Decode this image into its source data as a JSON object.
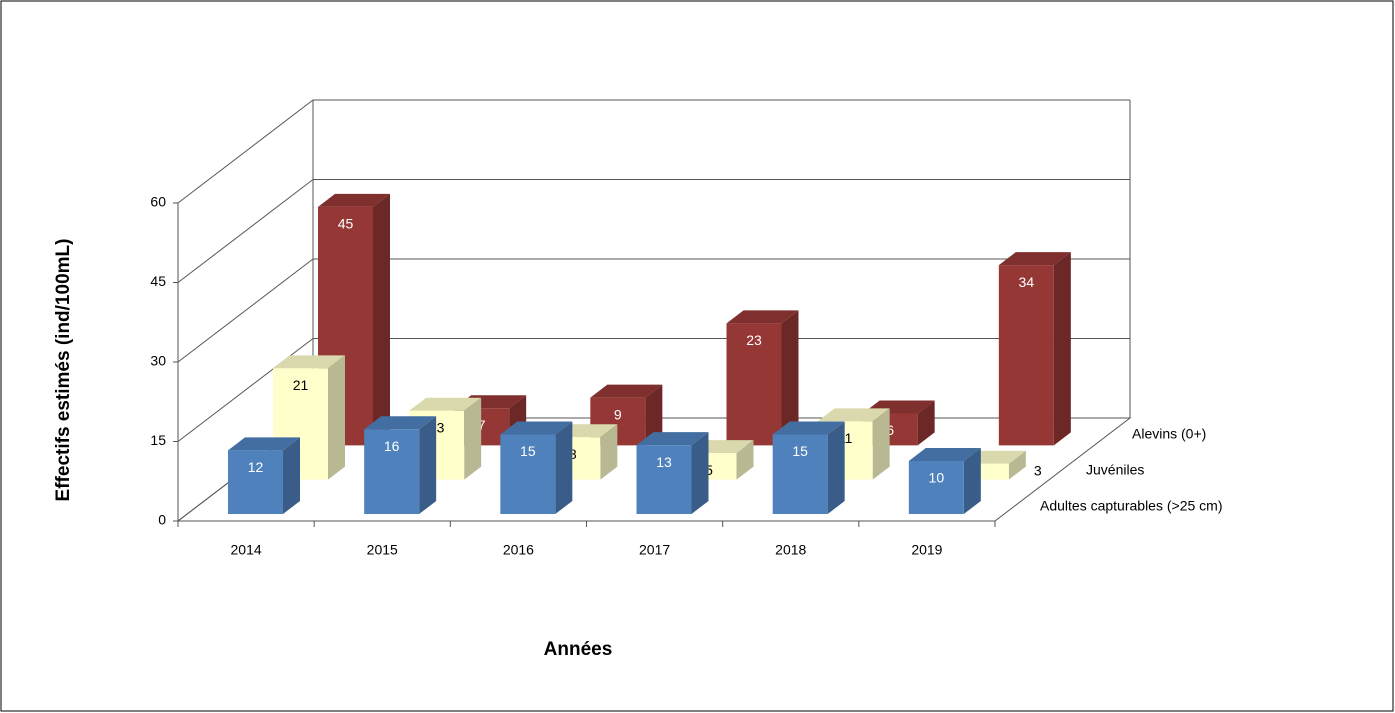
{
  "chart_data": {
    "type": "bar3d",
    "ylabel": "Effectifs estimés (ind/100mL)",
    "xlabel": "Années",
    "categories": [
      "2014",
      "2015",
      "2016",
      "2017",
      "2018",
      "2019"
    ],
    "series": [
      {
        "name": "Adultes capturables (>25 cm)",
        "color": "#4f81bd",
        "values": [
          12,
          16,
          15,
          13,
          15,
          10
        ]
      },
      {
        "name": "Juvéniles",
        "color": "#ffffcc",
        "values": [
          21,
          13,
          8,
          5,
          11,
          3
        ]
      },
      {
        "name": "Alevins (0+)",
        "color": "#953735",
        "values": [
          45,
          7,
          9,
          23,
          6,
          34
        ]
      }
    ],
    "ylim": [
      0,
      60
    ],
    "yticks": [
      0,
      15,
      30,
      45,
      60
    ],
    "grid": true
  }
}
